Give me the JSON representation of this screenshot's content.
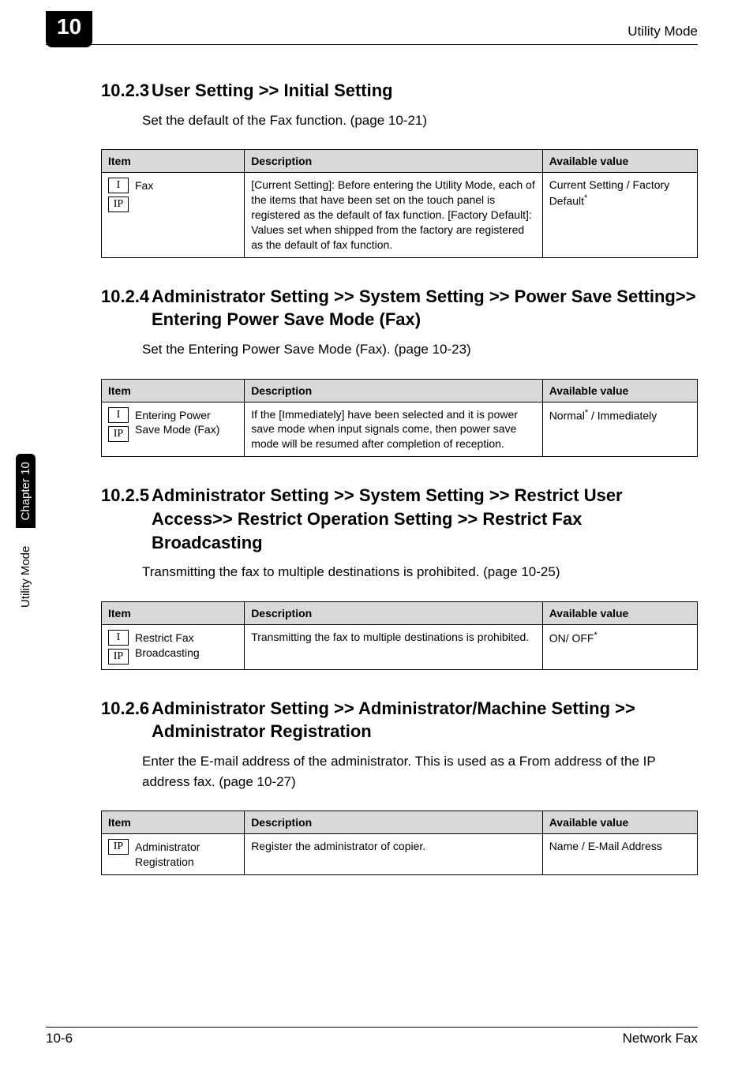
{
  "colors": {
    "background": "#ffffff",
    "text": "#000000",
    "table_header_bg": "#d9d9d9",
    "tab_bg": "#000000",
    "tab_text": "#ffffff"
  },
  "header": {
    "chapter_number_tab": "10",
    "running_head": "Utility Mode"
  },
  "sidetab": {
    "mode": "Utility Mode",
    "chapter": "Chapter 10"
  },
  "sections": [
    {
      "number": "10.2.3",
      "title": "User Setting >> Initial Setting",
      "intro": "Set the default of the Fax function. (page 10-21)",
      "table": {
        "head": {
          "c1": "Item",
          "c2": "Description",
          "c3": "Available value"
        },
        "row": {
          "icons": [
            "I",
            "IP"
          ],
          "label": "Fax",
          "desc": "[Current Setting]:\nBefore entering the Utility Mode, each of the items that have been set on the touch panel is registered as the default of fax function.\n[Factory Default]:\nValues set when shipped from the factory are registered as the default of fax function.",
          "avail_pre": "Current Setting / Factory Default",
          "avail_sup": "*"
        }
      }
    },
    {
      "number": "10.2.4",
      "title": "Administrator Setting >> System Setting >> Power Save Setting>> Entering Power Save Mode (Fax)",
      "intro": "Set the Entering Power Save Mode (Fax). (page 10-23)",
      "table": {
        "head": {
          "c1": "Item",
          "c2": "Description",
          "c3": "Available value"
        },
        "row": {
          "icons": [
            "I",
            "IP"
          ],
          "label": "Entering Power Save Mode (Fax)",
          "desc": "If the [Immediately] have been selected and it is power save mode when input signals come, then power save mode will be resumed after completion of reception.",
          "avail_pre": "Normal",
          "avail_sup": "*",
          "avail_post": " / Immediately"
        }
      }
    },
    {
      "number": "10.2.5",
      "title": "Administrator Setting >> System Setting >> Restrict User Access>> Restrict Operation Setting >> Restrict Fax Broadcasting",
      "intro": "Transmitting the fax to multiple destinations is prohibited. (page 10-25)",
      "table": {
        "head": {
          "c1": "Item",
          "c2": "Description",
          "c3": "Available value"
        },
        "row": {
          "icons": [
            "I",
            "IP"
          ],
          "label": "Restrict Fax Broadcasting",
          "desc": "Transmitting the fax to multiple destinations is prohibited.",
          "avail_pre": "ON/ OFF",
          "avail_sup": "*"
        }
      }
    },
    {
      "number": "10.2.6",
      "title": "Administrator Setting >> Administrator/Machine Setting >> Administrator Registration",
      "intro": "Enter the E-mail address of the administrator. This is used as a From address of the IP address fax. (page 10-27)",
      "table": {
        "head": {
          "c1": "Item",
          "c2": "Description",
          "c3": "Available value"
        },
        "row": {
          "icons": [
            "IP"
          ],
          "label": "Administrator Registration",
          "desc": "Register the administrator of copier.",
          "avail_pre": "Name / E-Mail Address"
        }
      }
    }
  ],
  "footer": {
    "left": "10-6",
    "right": "Network Fax"
  }
}
